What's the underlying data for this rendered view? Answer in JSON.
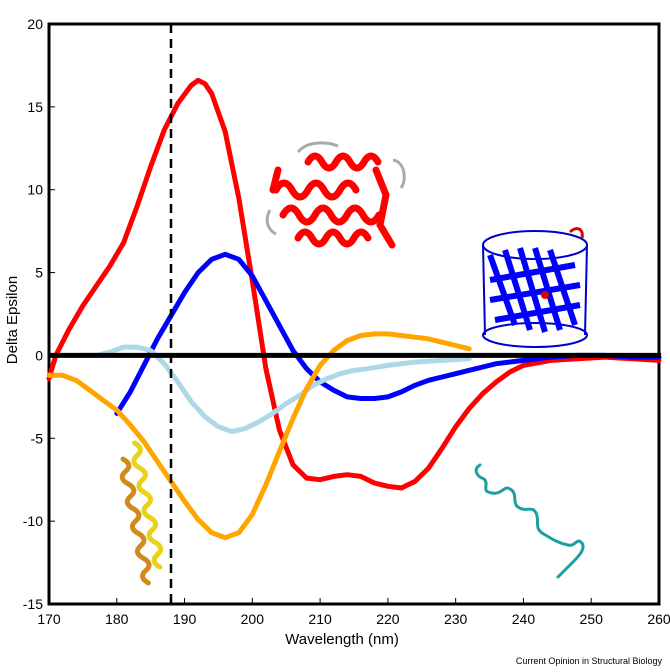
{
  "chart_data": {
    "type": "line",
    "xlabel": "Wavelength (nm)",
    "ylabel": "Delta Epsilon",
    "xlim": [
      170,
      260
    ],
    "ylim": [
      -15,
      20
    ],
    "x_ticks": [
      "170",
      "180",
      "190",
      "200",
      "210",
      "220",
      "230",
      "240",
      "250",
      "260"
    ],
    "y_ticks": [
      "-15",
      "-10",
      "-5",
      "0",
      "5",
      "10",
      "15",
      "20"
    ],
    "grid": false,
    "reference_line_x": 188,
    "credit": "Current Opinion in Structural Biology",
    "series": [
      {
        "color": "#ff0000",
        "points": [
          [
            170,
            -1.4
          ],
          [
            171,
            0
          ],
          [
            173,
            1.6
          ],
          [
            175,
            3.0
          ],
          [
            177,
            4.2
          ],
          [
            179,
            5.4
          ],
          [
            181,
            6.8
          ],
          [
            183,
            9.0
          ],
          [
            185,
            11.4
          ],
          [
            187,
            13.6
          ],
          [
            189,
            15.2
          ],
          [
            191,
            16.3
          ],
          [
            192,
            16.6
          ],
          [
            193,
            16.4
          ],
          [
            194,
            15.8
          ],
          [
            196,
            13.5
          ],
          [
            198,
            9.5
          ],
          [
            200,
            4.5
          ],
          [
            202,
            -0.8
          ],
          [
            204,
            -4.5
          ],
          [
            206,
            -6.6
          ],
          [
            208,
            -7.4
          ],
          [
            210,
            -7.5
          ],
          [
            212,
            -7.3
          ],
          [
            214,
            -7.2
          ],
          [
            216,
            -7.3
          ],
          [
            218,
            -7.7
          ],
          [
            220,
            -7.9
          ],
          [
            222,
            -8.0
          ],
          [
            224,
            -7.6
          ],
          [
            226,
            -6.8
          ],
          [
            228,
            -5.6
          ],
          [
            230,
            -4.3
          ],
          [
            232,
            -3.2
          ],
          [
            234,
            -2.3
          ],
          [
            236,
            -1.6
          ],
          [
            238,
            -1.0
          ],
          [
            240,
            -0.6
          ],
          [
            244,
            -0.3
          ],
          [
            248,
            -0.2
          ],
          [
            252,
            -0.1
          ],
          [
            256,
            -0.2
          ],
          [
            260,
            -0.3
          ]
        ]
      },
      {
        "color": "#0000ff",
        "points": [
          [
            180,
            -3.5
          ],
          [
            182,
            -2.2
          ],
          [
            184,
            -0.6
          ],
          [
            186,
            1.0
          ],
          [
            188,
            2.4
          ],
          [
            190,
            3.8
          ],
          [
            192,
            5.0
          ],
          [
            194,
            5.8
          ],
          [
            196,
            6.1
          ],
          [
            198,
            5.8
          ],
          [
            200,
            4.8
          ],
          [
            202,
            3.3
          ],
          [
            204,
            1.8
          ],
          [
            206,
            0.3
          ],
          [
            208,
            -0.8
          ],
          [
            210,
            -1.6
          ],
          [
            212,
            -2.1
          ],
          [
            214,
            -2.5
          ],
          [
            216,
            -2.6
          ],
          [
            218,
            -2.6
          ],
          [
            220,
            -2.5
          ],
          [
            222,
            -2.2
          ],
          [
            224,
            -1.8
          ],
          [
            226,
            -1.5
          ],
          [
            228,
            -1.3
          ],
          [
            230,
            -1.1
          ],
          [
            232,
            -0.9
          ],
          [
            234,
            -0.7
          ],
          [
            236,
            -0.5
          ],
          [
            240,
            -0.3
          ],
          [
            244,
            -0.1
          ],
          [
            248,
            0.0
          ],
          [
            252,
            0.0
          ],
          [
            256,
            -0.1
          ],
          [
            260,
            -0.1
          ]
        ]
      },
      {
        "color": "#add8e6",
        "points": [
          [
            175,
            0.0
          ],
          [
            177,
            0.0
          ],
          [
            179,
            0.2
          ],
          [
            181,
            0.5
          ],
          [
            183,
            0.5
          ],
          [
            185,
            0.3
          ],
          [
            187,
            -0.5
          ],
          [
            189,
            -1.6
          ],
          [
            191,
            -2.8
          ],
          [
            193,
            -3.7
          ],
          [
            195,
            -4.3
          ],
          [
            197,
            -4.6
          ],
          [
            199,
            -4.4
          ],
          [
            201,
            -4.0
          ],
          [
            203,
            -3.5
          ],
          [
            205,
            -2.9
          ],
          [
            207,
            -2.4
          ],
          [
            209,
            -1.8
          ],
          [
            211,
            -1.4
          ],
          [
            213,
            -1.1
          ],
          [
            215,
            -0.9
          ],
          [
            217,
            -0.8
          ],
          [
            220,
            -0.6
          ],
          [
            224,
            -0.4
          ],
          [
            228,
            -0.3
          ],
          [
            232,
            -0.2
          ]
        ]
      },
      {
        "color": "#ffa500",
        "points": [
          [
            170,
            -1.2
          ],
          [
            172,
            -1.2
          ],
          [
            174,
            -1.5
          ],
          [
            176,
            -2.1
          ],
          [
            178,
            -2.7
          ],
          [
            180,
            -3.3
          ],
          [
            182,
            -4.2
          ],
          [
            184,
            -5.2
          ],
          [
            186,
            -6.4
          ],
          [
            188,
            -7.6
          ],
          [
            190,
            -8.8
          ],
          [
            192,
            -9.9
          ],
          [
            194,
            -10.7
          ],
          [
            196,
            -11.0
          ],
          [
            198,
            -10.7
          ],
          [
            200,
            -9.6
          ],
          [
            202,
            -7.8
          ],
          [
            204,
            -5.8
          ],
          [
            206,
            -3.8
          ],
          [
            208,
            -2.0
          ],
          [
            210,
            -0.6
          ],
          [
            212,
            0.3
          ],
          [
            214,
            0.9
          ],
          [
            216,
            1.2
          ],
          [
            218,
            1.3
          ],
          [
            220,
            1.3
          ],
          [
            222,
            1.2
          ],
          [
            224,
            1.1
          ],
          [
            226,
            1.0
          ],
          [
            228,
            0.8
          ],
          [
            230,
            0.6
          ],
          [
            232,
            0.4
          ]
        ]
      }
    ]
  },
  "icons": {
    "red_helix_protein": "alpha-helical-protein-structure",
    "blue_barrel_protein": "beta-barrel-protein-structure",
    "yellow_coiled_coil": "coiled-coil-structure",
    "teal_random_coil": "random-coil-structure"
  },
  "colors": {
    "red": "#ff0000",
    "blue": "#0000ff",
    "lightblue": "#add8e6",
    "orange": "#ffa500",
    "teal": "#1aa0a0",
    "yellow": "#e8d21a"
  }
}
